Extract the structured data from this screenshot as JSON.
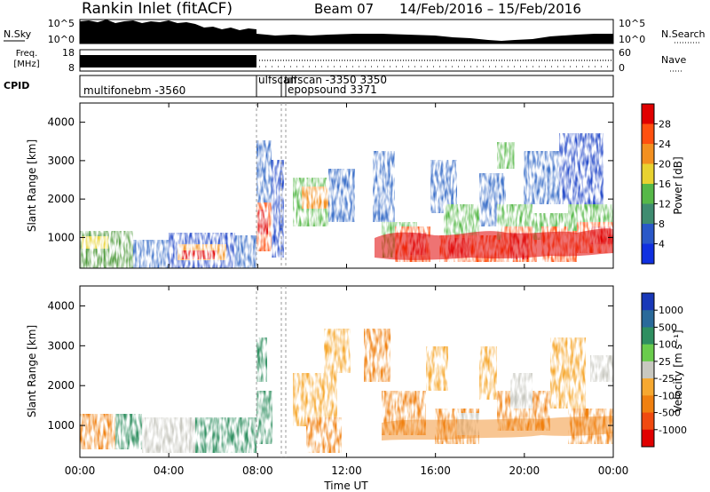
{
  "header": {
    "station": "Rankin Inlet (fitACF)",
    "beam": "Beam 07",
    "date_range": "14/Feb/2016 – 15/Feb/2016"
  },
  "side_labels": {
    "nsky": "N.Sky",
    "nsearch": "N.Search",
    "freq": "Freq.",
    "freq_unit": "[MHz]",
    "nave": "Nave",
    "cpid": "CPID"
  },
  "noise_axis": {
    "ticks": [
      "10^5",
      "10^0"
    ]
  },
  "freq_axis": {
    "ticks": [
      "18",
      "8"
    ]
  },
  "nave_axis": {
    "ticks": [
      "60",
      "0"
    ]
  },
  "cpid_labels": [
    "multifonebm -3560",
    "ulfscan",
    "ulfscan -3350 3350",
    "epopsound 3371"
  ],
  "chart_data": [
    {
      "type": "heatmap",
      "name": "power-panel",
      "ylabel": "Slant Range [km]",
      "y_ticks": [
        "1000",
        "2000",
        "3000",
        "4000"
      ],
      "colorbar": {
        "label": "Power [dB]",
        "ticks": [
          "4",
          "8",
          "12",
          "16",
          "20",
          "24",
          "28"
        ],
        "colors": [
          "#1030e0",
          "#2a58c8",
          "#3f8c70",
          "#56b848",
          "#e8d230",
          "#f39020",
          "#ff5010",
          "#e00000"
        ]
      }
    },
    {
      "type": "heatmap",
      "name": "velocity-panel",
      "ylabel": "Slant Range [km]",
      "y_ticks": [
        "1000",
        "2000",
        "3000",
        "4000"
      ],
      "xlabel": "Time UT",
      "x_ticks": [
        "00:00",
        "04:00",
        "08:00",
        "12:00",
        "16:00",
        "20:00",
        "00:00"
      ],
      "colorbar": {
        "label": "Velocity [m s⁻¹]",
        "ticks": [
          "1000",
          "500",
          "100",
          "25",
          "-25",
          "-100",
          "-500",
          "-1000"
        ],
        "colors": [
          "#1838b8",
          "#2a6a9a",
          "#2f8f60",
          "#6acc4c",
          "#c8c8c0",
          "#f6a830",
          "#f08010",
          "#f04a10",
          "#e00000"
        ]
      }
    }
  ]
}
